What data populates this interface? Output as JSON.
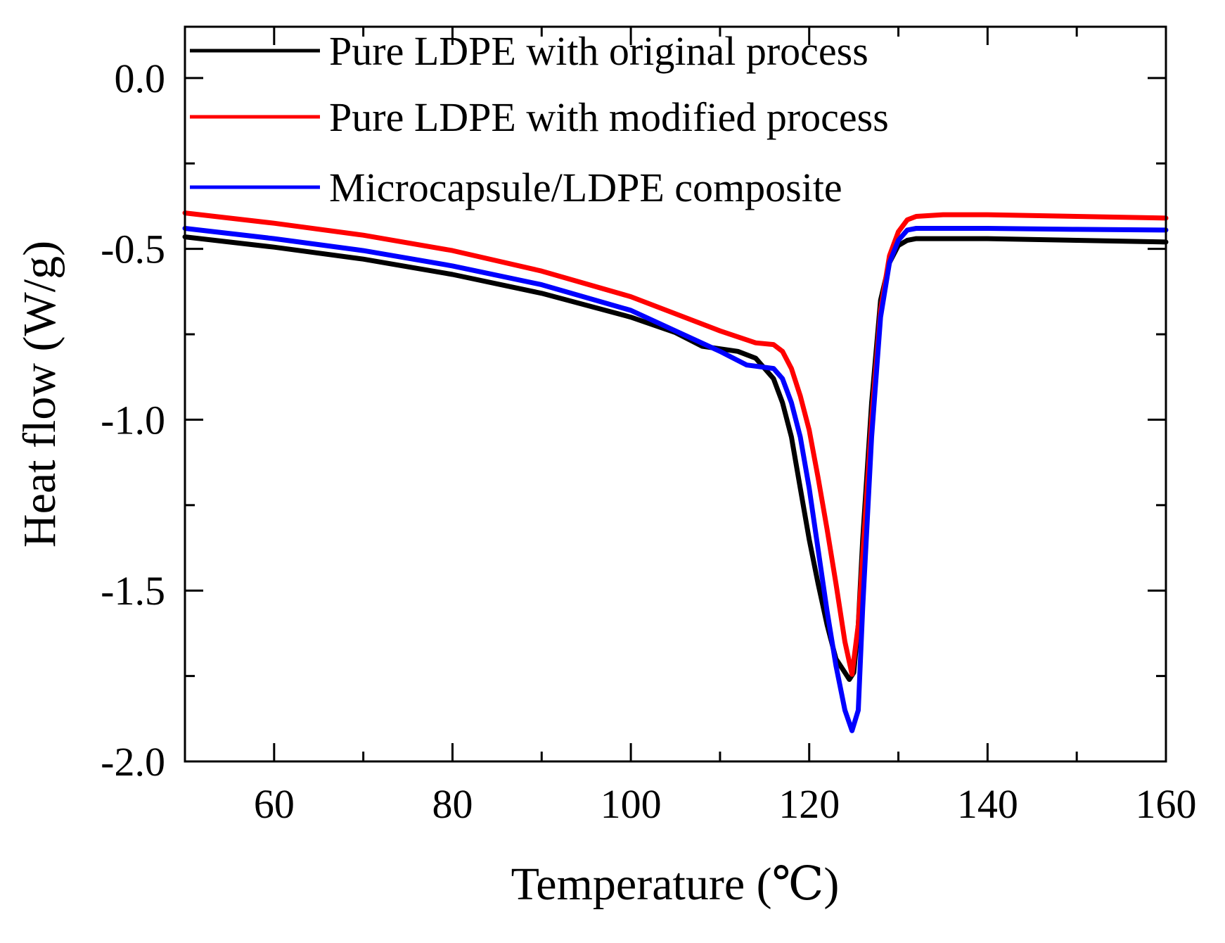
{
  "chart_data": {
    "type": "line",
    "title": "",
    "xlabel": "Temperature (℃)",
    "ylabel": "Heat flow (W/g)",
    "xlim": [
      50,
      160
    ],
    "ylim": [
      -2.0,
      0.15
    ],
    "x_major_ticks": [
      60,
      80,
      100,
      120,
      140,
      160
    ],
    "x_tick_labels": [
      "60",
      "80",
      "100",
      "120",
      "140",
      "160"
    ],
    "x_minor_ticks": [
      50,
      70,
      90,
      110,
      130,
      150
    ],
    "y_major_ticks": [
      0.0,
      -0.5,
      -1.0,
      -1.5,
      -2.0
    ],
    "y_tick_labels": [
      "0.0",
      "-0.5",
      "-1.0",
      "-1.5",
      "-2.0"
    ],
    "y_minor_ticks": [
      0.25,
      -0.25,
      -0.75,
      -1.25,
      -1.75
    ],
    "grid": false,
    "legend_position": "top-left",
    "series": [
      {
        "name": "Pure LDPE with original process",
        "color": "#000000",
        "marker": "square",
        "points": [
          [
            50,
            -0.465
          ],
          [
            60,
            -0.495
          ],
          [
            70,
            -0.53
          ],
          [
            80,
            -0.575
          ],
          [
            90,
            -0.63
          ],
          [
            100,
            -0.7
          ],
          [
            105,
            -0.745
          ],
          [
            108,
            -0.785
          ],
          [
            112,
            -0.8
          ],
          [
            114,
            -0.82
          ],
          [
            116,
            -0.88
          ],
          [
            117,
            -0.95
          ],
          [
            118,
            -1.05
          ],
          [
            119,
            -1.2
          ],
          [
            120,
            -1.35
          ],
          [
            121,
            -1.48
          ],
          [
            122,
            -1.6
          ],
          [
            123,
            -1.7
          ],
          [
            124,
            -1.74
          ],
          [
            124.5,
            -1.76
          ],
          [
            125,
            -1.74
          ],
          [
            125.5,
            -1.6
          ],
          [
            126,
            -1.35
          ],
          [
            127,
            -0.95
          ],
          [
            128,
            -0.65
          ],
          [
            129,
            -0.54
          ],
          [
            130,
            -0.49
          ],
          [
            131,
            -0.475
          ],
          [
            132,
            -0.47
          ],
          [
            135,
            -0.47
          ],
          [
            140,
            -0.47
          ],
          [
            150,
            -0.475
          ],
          [
            160,
            -0.48
          ]
        ]
      },
      {
        "name": "Pure LDPE with modified process",
        "color": "#ff0000",
        "marker": "circle",
        "points": [
          [
            50,
            -0.395
          ],
          [
            60,
            -0.425
          ],
          [
            70,
            -0.46
          ],
          [
            80,
            -0.505
          ],
          [
            90,
            -0.565
          ],
          [
            100,
            -0.64
          ],
          [
            105,
            -0.69
          ],
          [
            110,
            -0.74
          ],
          [
            114,
            -0.775
          ],
          [
            116,
            -0.78
          ],
          [
            117,
            -0.8
          ],
          [
            118,
            -0.85
          ],
          [
            119,
            -0.93
          ],
          [
            120,
            -1.03
          ],
          [
            121,
            -1.17
          ],
          [
            122,
            -1.32
          ],
          [
            123,
            -1.48
          ],
          [
            124,
            -1.65
          ],
          [
            124.8,
            -1.745
          ],
          [
            125.5,
            -1.6
          ],
          [
            126,
            -1.4
          ],
          [
            127,
            -1.0
          ],
          [
            128,
            -0.68
          ],
          [
            129,
            -0.52
          ],
          [
            130,
            -0.45
          ],
          [
            131,
            -0.415
          ],
          [
            132,
            -0.405
          ],
          [
            135,
            -0.4
          ],
          [
            140,
            -0.4
          ],
          [
            150,
            -0.405
          ],
          [
            160,
            -0.41
          ]
        ]
      },
      {
        "name": "Microcapsule/LDPE composite",
        "color": "#0000ff",
        "marker": "triangle",
        "points": [
          [
            50,
            -0.44
          ],
          [
            60,
            -0.47
          ],
          [
            70,
            -0.505
          ],
          [
            80,
            -0.55
          ],
          [
            90,
            -0.605
          ],
          [
            100,
            -0.68
          ],
          [
            105,
            -0.74
          ],
          [
            110,
            -0.8
          ],
          [
            113,
            -0.84
          ],
          [
            116,
            -0.85
          ],
          [
            117,
            -0.88
          ],
          [
            118,
            -0.95
          ],
          [
            119,
            -1.05
          ],
          [
            120,
            -1.2
          ],
          [
            121,
            -1.38
          ],
          [
            122,
            -1.56
          ],
          [
            123,
            -1.72
          ],
          [
            124,
            -1.85
          ],
          [
            124.8,
            -1.91
          ],
          [
            125.5,
            -1.85
          ],
          [
            126,
            -1.55
          ],
          [
            127,
            -1.05
          ],
          [
            128,
            -0.7
          ],
          [
            129,
            -0.54
          ],
          [
            130,
            -0.475
          ],
          [
            131,
            -0.445
          ],
          [
            132,
            -0.44
          ],
          [
            135,
            -0.44
          ],
          [
            140,
            -0.44
          ],
          [
            150,
            -0.443
          ],
          [
            160,
            -0.445
          ]
        ]
      }
    ]
  }
}
